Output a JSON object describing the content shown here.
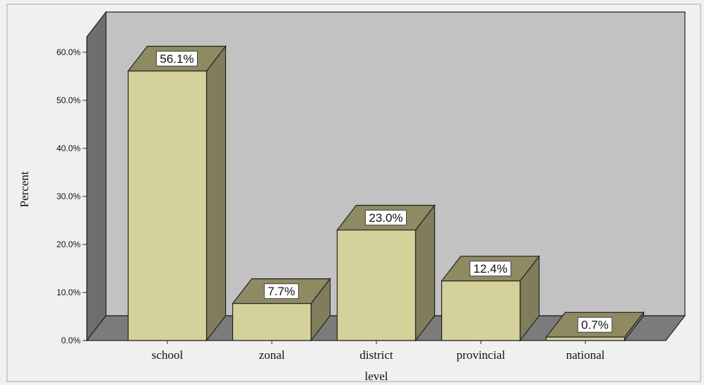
{
  "chart_data": {
    "type": "bar",
    "style": "3d",
    "categories": [
      "school",
      "zonal",
      "district",
      "provincial",
      "national"
    ],
    "values": [
      56.1,
      7.7,
      23.0,
      12.4,
      0.7
    ],
    "data_labels": [
      "56.1%",
      "7.7%",
      "23.0%",
      "12.4%",
      "0.7%"
    ],
    "xlabel": "level",
    "ylabel": "Percent",
    "ylim": [
      0,
      60
    ],
    "yticks": [
      0,
      10,
      20,
      30,
      40,
      50,
      60
    ],
    "ytick_labels": [
      "0.0%",
      "10.0%",
      "20.0%",
      "30.0%",
      "40.0%",
      "50.0%",
      "60.0%"
    ],
    "grid": false,
    "colors": {
      "bar_front": "#d5d19a",
      "bar_side": "#7f7d5c",
      "bar_top": "#8e8b63",
      "back_wall": "#c2c2c2",
      "side_wall": "#6e6e6e",
      "floor": "#7b7b7b",
      "outer_background": "#f0f0f0"
    }
  }
}
